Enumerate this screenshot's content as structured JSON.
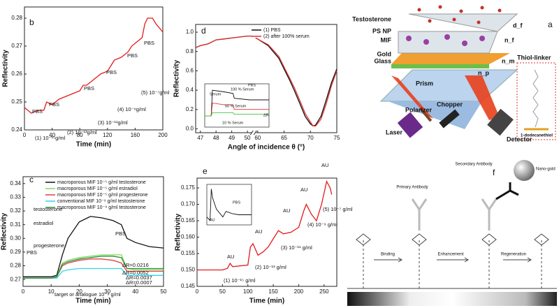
{
  "chart_data": [
    {
      "type": "line",
      "label": "b",
      "xlabel": "Time (min)",
      "ylabel": "Reflectivity",
      "x": [
        0,
        10,
        20,
        28,
        32,
        40,
        50,
        60,
        70,
        80,
        85,
        90,
        100,
        110,
        120,
        125,
        130,
        140,
        150,
        155,
        160,
        170,
        174,
        178,
        185,
        190,
        200
      ],
      "series": [
        {
          "color": "#e41a1c",
          "values": [
            0.248,
            0.246,
            0.247,
            0.247,
            0.25,
            0.249,
            0.251,
            0.252,
            0.253,
            0.254,
            0.256,
            0.256,
            0.258,
            0.26,
            0.261,
            0.263,
            0.265,
            0.266,
            0.268,
            0.27,
            0.271,
            0.273,
            0.278,
            0.28,
            0.28,
            0.278,
            0.275
          ]
        }
      ],
      "xlim": [
        0,
        200
      ],
      "xticks": [
        0,
        40,
        80,
        120,
        160,
        200
      ],
      "ylim": [
        0.24,
        0.284
      ],
      "yticks": [
        0.24,
        0.25,
        0.26,
        0.27,
        0.28
      ],
      "annotations": [
        "PBS",
        "PBS",
        "(1) 10⁻¹⁵g/ml",
        "(2) 10⁻¹³g/ml",
        "PBS",
        "(3) 10⁻¹¹g/ml",
        "PBS",
        "(4) 10⁻⁹g/ml",
        "PBS",
        "(5) 10⁻⁷g/ml",
        "PBS"
      ]
    },
    {
      "type": "line",
      "label": "d",
      "xlabel": "Angle of incidence θ (°)",
      "ylabel": "Reflectivity",
      "x": [
        46.7,
        47,
        47.5,
        48,
        48.5,
        49,
        49.5,
        50,
        50.3,
        null,
        59.6,
        60,
        62,
        64,
        65,
        66,
        67,
        68,
        69,
        70,
        70.5,
        71,
        72,
        73,
        74,
        75
      ],
      "series": [
        {
          "name": "(1) PBS",
          "color": "#111111",
          "values": [
            0.84,
            0.86,
            0.88,
            0.92,
            0.93,
            0.94,
            0.95,
            0.96,
            0.96,
            null,
            0.94,
            0.93,
            0.86,
            0.73,
            0.62,
            0.51,
            0.39,
            0.26,
            0.13,
            0.05,
            0.03,
            0.04,
            0.13,
            0.3,
            0.48,
            0.62
          ]
        },
        {
          "name": "(2) after 100% serum",
          "color": "#e03030",
          "values": [
            0.84,
            0.86,
            0.88,
            0.92,
            0.93,
            0.94,
            0.95,
            0.96,
            0.96,
            null,
            0.94,
            0.93,
            0.87,
            0.75,
            0.64,
            0.53,
            0.42,
            0.29,
            0.16,
            0.07,
            0.03,
            0.03,
            0.1,
            0.26,
            0.45,
            0.6
          ]
        }
      ],
      "xlim": [
        46.7,
        75
      ],
      "x_break": [
        50.3,
        59.6
      ],
      "xticks": [
        47,
        48,
        49,
        50,
        60,
        65,
        70,
        75
      ],
      "ylim": [
        -0.04,
        1.08
      ],
      "yticks": [
        {
          "value": 0,
          "label": "0.0"
        },
        0.2,
        0.4,
        0.6,
        0.8,
        {
          "value": 1,
          "label": "1.0"
        }
      ],
      "legend": "upper right",
      "inset": {
        "x": [
          0,
          10,
          12,
          30,
          44,
          46,
          70,
          100
        ],
        "xlim": [
          0,
          100
        ],
        "ylim": [
          0.05,
          0.32
        ],
        "series": [
          {
            "color": "#111111",
            "values": [
              0.12,
              0.12,
              0.28,
              0.27,
              0.26,
              0.23,
              0.22,
              0.22
            ]
          },
          {
            "color": "#e03030",
            "values": [
              0.12,
              0.12,
              0.2,
              0.19,
              0.19,
              0.16,
              0.16,
              0.16
            ]
          },
          {
            "color": "#3ac43a",
            "values": [
              0.12,
              0.12,
              0.14,
              0.14,
              0.14,
              0.13,
              0.13,
              0.13
            ]
          }
        ],
        "annotations": [
          "Serum",
          "100 % Serum",
          "PBS",
          "50 % Serum",
          "10 % Serum",
          "ΔR"
        ]
      }
    },
    {
      "type": "line",
      "label": "c",
      "xlabel": "Time (min)",
      "ylabel": "Reflectivity",
      "x": [
        0,
        10,
        12,
        14,
        16,
        20,
        24,
        28,
        32,
        35,
        37,
        40,
        45,
        50
      ],
      "series": [
        {
          "name": "macroporous MIF 10⁻⁵ g/ml testosterone",
          "color": "#111111",
          "values": [
            0.272,
            0.272,
            0.273,
            0.288,
            0.3,
            0.312,
            0.316,
            0.315,
            0.313,
            0.31,
            0.3,
            0.297,
            0.294,
            0.293
          ]
        },
        {
          "name": "macroporous MIF 10⁻⁵ g/ml estradiol",
          "color": "#7ddc5a",
          "values": [
            0.271,
            0.271,
            0.272,
            0.282,
            0.284,
            0.286,
            0.287,
            0.288,
            0.288,
            0.288,
            0.278,
            0.277,
            0.277,
            0.277
          ]
        },
        {
          "name": "macroporous MIF 10⁻⁵ g/ml progesterone",
          "color": "#e04040",
          "values": [
            0.271,
            0.271,
            0.272,
            0.28,
            0.282,
            0.284,
            0.285,
            0.285,
            0.284,
            0.282,
            0.276,
            0.276,
            0.276,
            0.276
          ]
        },
        {
          "name": "conventional MIF 10⁻⁹ g/ml testosterone",
          "color": "#30d5e8",
          "values": [
            0.271,
            0.271,
            0.271,
            0.276,
            0.277,
            0.278,
            0.278,
            0.278,
            0.278,
            0.278,
            0.273,
            0.273,
            0.273,
            0.273
          ]
        },
        {
          "name": "macroporous MIF 10⁻⁹ g/ml testosterone",
          "color": "#2e8b3a",
          "values": [
            0.271,
            0.271,
            0.272,
            0.281,
            0.283,
            0.285,
            0.286,
            0.287,
            0.287,
            0.286,
            0.278,
            0.278,
            0.278,
            0.278
          ]
        }
      ],
      "xlim": [
        0,
        50
      ],
      "xticks": [
        0,
        10,
        20,
        30,
        40,
        50
      ],
      "ylim": [
        0.265,
        0.345
      ],
      "yticks": [
        0.27,
        0.28,
        0.29,
        {
          "value": 0.3,
          "label": "0.30"
        },
        0.31,
        0.32,
        0.33,
        0.34
      ],
      "legend": "upper right",
      "annotations": [
        "PBS",
        "PBS",
        "ΔR=0.0216",
        "ΔR=0.0052",
        "ΔR=0.0037",
        "ΔR=0.0007",
        "target or analogue 10⁻⁹ g/ml",
        "testosterone",
        "estradiol",
        "progesterone"
      ]
    },
    {
      "type": "line",
      "label": "e",
      "xlabel": "Time (min)",
      "ylabel": "Reflectivity",
      "x": [
        0,
        50,
        60,
        65,
        70,
        100,
        105,
        110,
        120,
        130,
        140,
        150,
        160,
        170,
        185,
        200,
        210,
        215,
        225,
        235,
        245,
        255,
        262,
        265
      ],
      "series": [
        {
          "color": "#e31a1c",
          "values": [
            0.15,
            0.15,
            0.1505,
            0.152,
            0.151,
            0.1515,
            0.157,
            0.158,
            0.1545,
            0.1555,
            0.157,
            0.1595,
            0.162,
            0.161,
            0.1615,
            0.163,
            0.168,
            0.17,
            0.167,
            0.165,
            0.17,
            0.177,
            0.175,
            0.173
          ]
        }
      ],
      "xlim": [
        0,
        275
      ],
      "xticks": [
        0,
        50,
        100,
        150,
        200,
        250
      ],
      "ylim": [
        0.145,
        0.178
      ],
      "yticks": [
        0.145,
        {
          "value": 0.15,
          "label": "0.150"
        },
        0.155,
        {
          "value": 0.16,
          "label": "0.160"
        },
        0.165,
        {
          "value": 0.17,
          "label": "0.170"
        },
        0.175
      ],
      "annotations": [
        "AU",
        "AU",
        "AU",
        "AU",
        "AU",
        "(1) 10⁻¹⁵ g/ml",
        "(2) 10⁻¹³ g/ml",
        "(3) 10⁻¹¹ g/ml",
        "(4) 10⁻⁹ g/ml",
        "(5) 10⁻⁷ g/ml"
      ],
      "inset": {
        "x": [
          0,
          10,
          14,
          18,
          30,
          50,
          60,
          80,
          100,
          140
        ],
        "xlim": [
          0,
          140
        ],
        "ylim": [
          0.148,
          0.184
        ],
        "series": [
          {
            "color": "#111111",
            "values": [
              0.155,
              0.152,
              0.18,
              0.172,
              0.162,
              0.155,
              0.16,
              0.158,
              0.157,
              0.157
            ]
          }
        ],
        "annotations": [
          "AU",
          "PBS"
        ]
      }
    }
  ],
  "diagram_a": {
    "label": "a",
    "labels": [
      "Testosterone",
      "PS NP",
      "MIF",
      "Gold",
      "Glass",
      "Prism",
      "Chopper",
      "Polarizer",
      "Laser",
      "Detector",
      "Thiol-linker",
      "1-dodecanethiol",
      "n_f",
      "d_f",
      "n_m",
      "n_p"
    ]
  },
  "diagram_f": {
    "label": "f",
    "labels": [
      "Nano-gold",
      "Secondary Antibody",
      "Primary Antibody",
      "Binding",
      "Enhancement",
      "Regeneration"
    ]
  }
}
